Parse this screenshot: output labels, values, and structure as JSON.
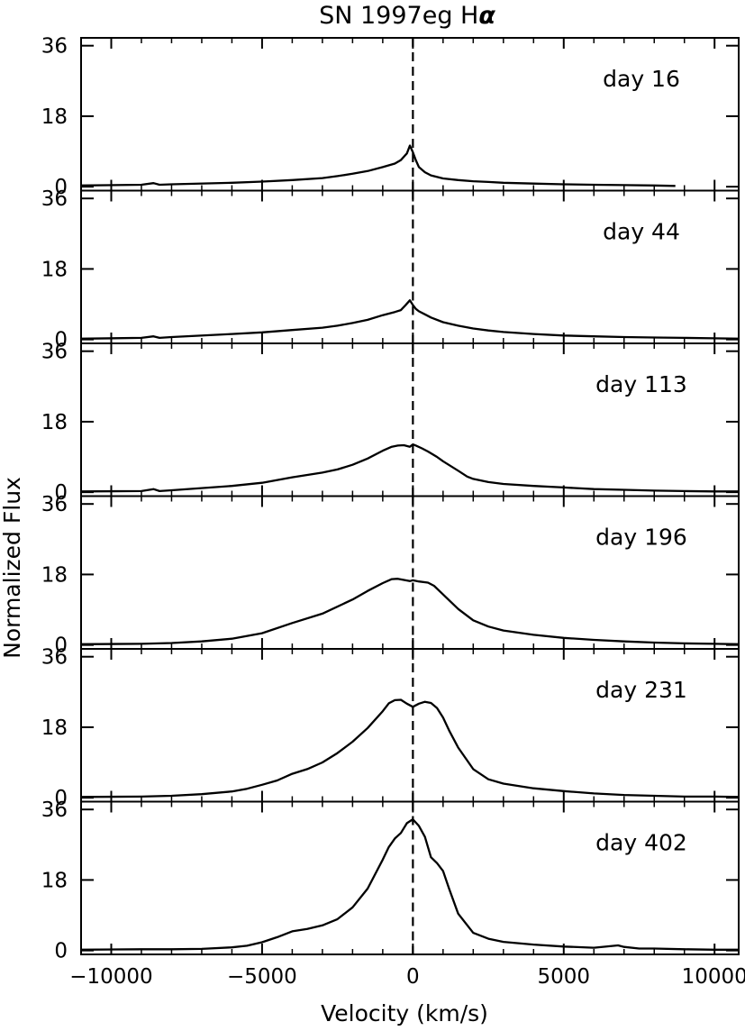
{
  "chart_data": {
    "type": "line",
    "title": "SN 1997eg H",
    "title_symbol": "α",
    "xlabel": "Velocity (km/s)",
    "ylabel": "Normalized Flux",
    "xlim": [
      -11000,
      10800
    ],
    "ylim": [
      -1,
      38
    ],
    "x_ticks": [
      -10000,
      -5000,
      0,
      5000,
      10000
    ],
    "x_tick_labels": [
      "−10000",
      "−5000",
      "0",
      "5000",
      "10000"
    ],
    "y_ticks": [
      0,
      18,
      36
    ],
    "y_tick_labels": [
      "0",
      "18",
      "36"
    ],
    "reference_line": {
      "x": 0,
      "style": "dashed"
    },
    "panels": [
      {
        "label": "day 16",
        "x": [
          -11000,
          -9000,
          -8600,
          -8400,
          -8000,
          -6000,
          -5000,
          -4000,
          -3000,
          -2500,
          -2000,
          -1500,
          -1000,
          -600,
          -400,
          -200,
          -100,
          0,
          100,
          200,
          400,
          600,
          1000,
          1500,
          2000,
          2500,
          3000,
          4000,
          5000,
          6000,
          7000,
          8000,
          8700
        ],
        "y": [
          0.3,
          0.5,
          0.9,
          0.5,
          0.6,
          1.0,
          1.3,
          1.7,
          2.2,
          2.7,
          3.3,
          4.0,
          5.0,
          5.9,
          6.8,
          8.5,
          10.5,
          8.8,
          6.7,
          5.0,
          3.7,
          2.9,
          2.1,
          1.7,
          1.4,
          1.2,
          1.0,
          0.8,
          0.6,
          0.5,
          0.4,
          0.3,
          0.2
        ]
      },
      {
        "label": "day 44",
        "x": [
          -11000,
          -9000,
          -8600,
          -8400,
          -8000,
          -6000,
          -5000,
          -4000,
          -3000,
          -2500,
          -2000,
          -1500,
          -1000,
          -600,
          -400,
          -250,
          -100,
          0,
          100,
          200,
          400,
          600,
          1000,
          1500,
          2000,
          2500,
          3000,
          4000,
          5000,
          6000,
          7000,
          8000,
          9000,
          10000,
          10800
        ],
        "y": [
          0.2,
          0.4,
          0.8,
          0.4,
          0.6,
          1.4,
          1.8,
          2.4,
          3.0,
          3.5,
          4.2,
          5.0,
          6.2,
          7.0,
          7.5,
          8.7,
          10.0,
          8.8,
          7.8,
          7.2,
          6.4,
          5.6,
          4.4,
          3.5,
          2.8,
          2.3,
          1.9,
          1.4,
          1.0,
          0.8,
          0.6,
          0.5,
          0.4,
          0.3,
          0.2
        ]
      },
      {
        "label": "day 113",
        "x": [
          -11000,
          -9000,
          -8600,
          -8400,
          -8000,
          -6000,
          -5000,
          -4000,
          -3000,
          -2500,
          -2000,
          -1500,
          -1000,
          -700,
          -500,
          -300,
          -100,
          0,
          100,
          300,
          500,
          800,
          1000,
          1500,
          1800,
          2000,
          2500,
          3000,
          4000,
          5000,
          6000,
          7000,
          8000,
          9000,
          10000,
          10800
        ],
        "y": [
          0.2,
          0.3,
          0.8,
          0.3,
          0.5,
          1.6,
          2.4,
          3.8,
          5.0,
          5.8,
          7.0,
          8.6,
          10.6,
          11.6,
          11.9,
          12.0,
          11.6,
          12.2,
          11.9,
          11.2,
          10.4,
          9.0,
          7.9,
          5.5,
          4.0,
          3.4,
          2.6,
          2.1,
          1.6,
          1.2,
          0.8,
          0.6,
          0.4,
          0.3,
          0.2,
          0.2
        ]
      },
      {
        "label": "day 196",
        "x": [
          -11000,
          -9000,
          -8000,
          -7000,
          -6000,
          -5000,
          -4000,
          -3000,
          -2000,
          -1500,
          -1000,
          -700,
          -500,
          -300,
          -100,
          0,
          200,
          500,
          700,
          1000,
          1500,
          2000,
          2500,
          3000,
          4000,
          5000,
          6000,
          7000,
          8000,
          9000,
          10000,
          10800
        ],
        "y": [
          0.2,
          0.3,
          0.5,
          0.9,
          1.6,
          3.0,
          5.6,
          8.0,
          11.6,
          13.8,
          15.8,
          16.8,
          16.9,
          16.6,
          16.3,
          16.5,
          16.2,
          15.9,
          15.1,
          12.9,
          9.2,
          6.3,
          4.7,
          3.7,
          2.6,
          1.8,
          1.3,
          0.9,
          0.6,
          0.4,
          0.3,
          0.2
        ]
      },
      {
        "label": "day 231",
        "x": [
          -11000,
          -9000,
          -8000,
          -7000,
          -6000,
          -5500,
          -5000,
          -4500,
          -4000,
          -3500,
          -3000,
          -2500,
          -2000,
          -1500,
          -1000,
          -800,
          -600,
          -400,
          -200,
          0,
          200,
          400,
          600,
          800,
          1000,
          1200,
          1500,
          2000,
          2500,
          3000,
          4000,
          5000,
          6000,
          7000,
          8000,
          9000,
          10000,
          10800
        ],
        "y": [
          0.2,
          0.3,
          0.5,
          0.9,
          1.6,
          2.3,
          3.3,
          4.4,
          6.1,
          7.3,
          9.0,
          11.4,
          14.3,
          17.8,
          22.1,
          24.1,
          24.9,
          25.0,
          24.0,
          23.2,
          24.0,
          24.5,
          24.2,
          22.9,
          20.5,
          17.2,
          12.8,
          7.3,
          4.7,
          3.6,
          2.4,
          1.7,
          1.1,
          0.7,
          0.5,
          0.3,
          0.3,
          0.2
        ]
      },
      {
        "label": "day 402",
        "x": [
          -11000,
          -9000,
          -8000,
          -7000,
          -6000,
          -5500,
          -5000,
          -4500,
          -4000,
          -3500,
          -3000,
          -2500,
          -2000,
          -1500,
          -1000,
          -800,
          -600,
          -400,
          -200,
          0,
          200,
          400,
          600,
          800,
          1000,
          1200,
          1500,
          2000,
          2500,
          3000,
          4000,
          5000,
          6000,
          6800,
          7000,
          7500,
          8000,
          9000,
          10000,
          10800
        ],
        "y": [
          0.2,
          0.3,
          0.3,
          0.4,
          0.8,
          1.2,
          2.1,
          3.4,
          4.9,
          5.5,
          6.4,
          8.0,
          11.0,
          15.8,
          23.2,
          26.4,
          28.6,
          30.0,
          32.5,
          33.5,
          31.8,
          29.0,
          23.8,
          22.3,
          20.3,
          15.8,
          9.4,
          4.5,
          3.0,
          2.2,
          1.5,
          1.0,
          0.7,
          1.3,
          0.9,
          0.5,
          0.5,
          0.3,
          0.2,
          0.2
        ]
      }
    ]
  }
}
